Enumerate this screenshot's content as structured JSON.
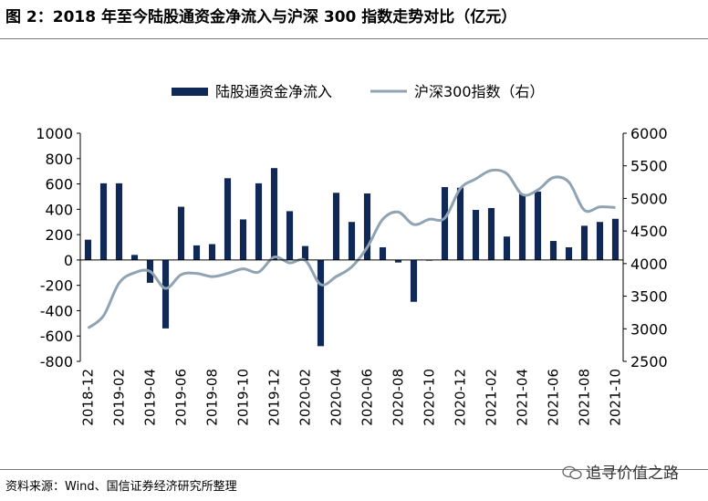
{
  "title": "图 2：2018 年至今陆股通资金净流入与沪深 300 指数走势对比（亿元）",
  "source": "资料来源：Wind、国信证券经济研究所整理",
  "watermark": "追寻价值之路",
  "colors": {
    "bar": "#0f2856",
    "line": "#8fa3b3",
    "axis": "#000000",
    "rule": "#7a7a7a"
  },
  "chart_data": {
    "type": "bar+line",
    "legend": {
      "placement": "top-center",
      "entries": [
        "陆股通资金净流入",
        "沪深300指数（右）"
      ]
    },
    "x_tick_labels": [
      "2018-12",
      "2019-02",
      "2019-04",
      "2019-06",
      "2019-08",
      "2019-10",
      "2019-12",
      "2020-02",
      "2020-04",
      "2020-06",
      "2020-08",
      "2020-10",
      "2020-12",
      "2021-02",
      "2021-04",
      "2021-06",
      "2021-08",
      "2021-10"
    ],
    "left_axis": {
      "min": -800,
      "max": 1000,
      "ticks": [
        1000,
        800,
        600,
        400,
        200,
        0,
        -200,
        -400,
        -600,
        -800
      ]
    },
    "right_axis": {
      "min": 2500,
      "max": 6000,
      "ticks": [
        6000,
        5500,
        5000,
        4500,
        4000,
        3500,
        3000,
        2500
      ]
    },
    "bar_series": {
      "name": "陆股通资金净流入",
      "categories": [
        "2018-12",
        "2019-01",
        "2019-02",
        "2019-03",
        "2019-04",
        "2019-05",
        "2019-06",
        "2019-07",
        "2019-08",
        "2019-09",
        "2019-10",
        "2019-11",
        "2019-12",
        "2020-01",
        "2020-02",
        "2020-03",
        "2020-04",
        "2020-05",
        "2020-06",
        "2020-07",
        "2020-08",
        "2020-09",
        "2020-10",
        "2020-11",
        "2020-12",
        "2021-01",
        "2021-02",
        "2021-03",
        "2021-04",
        "2021-05",
        "2021-06",
        "2021-07",
        "2021-08",
        "2021-09",
        "2021-10"
      ],
      "values": [
        160,
        605,
        605,
        40,
        -180,
        -540,
        420,
        115,
        125,
        645,
        320,
        605,
        725,
        385,
        110,
        -680,
        530,
        300,
        525,
        100,
        -20,
        -330,
        0,
        575,
        570,
        395,
        410,
        185,
        520,
        540,
        150,
        100,
        270,
        300,
        325
      ]
    },
    "line_series": {
      "name": "沪深300指数（右）",
      "categories": [
        "2018-12",
        "2019-01",
        "2019-02",
        "2019-03",
        "2019-04",
        "2019-05",
        "2019-06",
        "2019-07",
        "2019-08",
        "2019-09",
        "2019-10",
        "2019-11",
        "2019-12",
        "2020-01",
        "2020-02",
        "2020-03",
        "2020-04",
        "2020-05",
        "2020-06",
        "2020-07",
        "2020-08",
        "2020-09",
        "2020-10",
        "2020-11",
        "2020-12",
        "2021-01",
        "2021-02",
        "2021-03",
        "2021-04",
        "2021-05",
        "2021-06",
        "2021-07",
        "2021-08",
        "2021-09",
        "2021-10"
      ],
      "values": [
        3010,
        3200,
        3700,
        3860,
        3880,
        3620,
        3830,
        3850,
        3800,
        3850,
        3920,
        3870,
        4100,
        4010,
        4050,
        3680,
        3800,
        3950,
        4250,
        4680,
        4790,
        4600,
        4680,
        4700,
        5150,
        5300,
        5430,
        5380,
        5060,
        5130,
        5320,
        5250,
        4820,
        4870,
        4860
      ]
    }
  }
}
